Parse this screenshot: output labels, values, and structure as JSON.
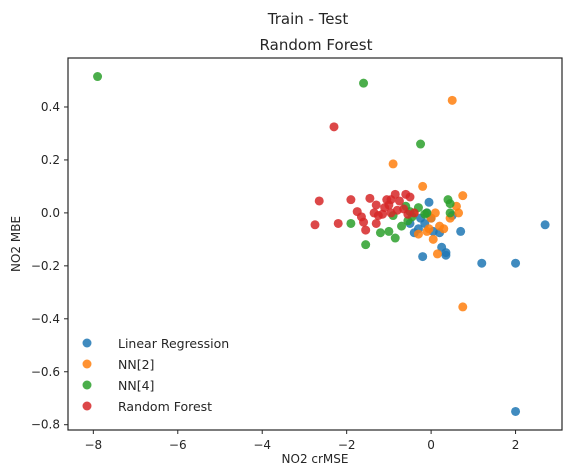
{
  "suptitle": "Train - Test",
  "chart_data": {
    "type": "scatter",
    "title": "Random Forest",
    "xlabel": "NO2 crMSE",
    "ylabel": "NO2 MBE",
    "xlim": [
      -8.6,
      3.1
    ],
    "ylim": [
      -0.82,
      0.585
    ],
    "xticks": [
      -8,
      -6,
      -4,
      -2,
      0,
      2
    ],
    "yticks": [
      -0.8,
      -0.6,
      -0.4,
      -0.2,
      0.0,
      0.2,
      0.4
    ],
    "xtick_labels": [
      "−8",
      "−6",
      "−4",
      "−2",
      "0",
      "2"
    ],
    "ytick_labels": [
      "−0.8",
      "−0.6",
      "−0.4",
      "−0.2",
      "0.0",
      "0.2",
      "0.4"
    ],
    "grid": false,
    "legend_position": "lower-left",
    "series": [
      {
        "name": "Linear Regression",
        "color": "#1f77b4",
        "points": [
          [
            2.7,
            -0.045
          ],
          [
            2.0,
            -0.19
          ],
          [
            2.0,
            -0.75
          ],
          [
            1.2,
            -0.19
          ],
          [
            0.35,
            -0.16
          ],
          [
            0.35,
            -0.15
          ],
          [
            0.25,
            -0.13
          ],
          [
            0.2,
            -0.075
          ],
          [
            0.05,
            -0.07
          ],
          [
            0.0,
            -0.02
          ],
          [
            -0.05,
            0.04
          ],
          [
            -0.1,
            0.0
          ],
          [
            -0.2,
            -0.165
          ],
          [
            -0.3,
            -0.06
          ],
          [
            -0.4,
            -0.075
          ],
          [
            -0.5,
            -0.04
          ],
          [
            0.5,
            -0.01
          ],
          [
            0.7,
            -0.07
          ],
          [
            -0.15,
            -0.04
          ],
          [
            -0.25,
            -0.02
          ]
        ]
      },
      {
        "name": "NN[2]",
        "color": "#ff7f0e",
        "points": [
          [
            0.5,
            0.425
          ],
          [
            -0.9,
            0.185
          ],
          [
            -0.2,
            0.1
          ],
          [
            0.75,
            0.065
          ],
          [
            0.6,
            0.025
          ],
          [
            0.1,
            0.0
          ],
          [
            0.0,
            -0.02
          ],
          [
            -0.05,
            -0.06
          ],
          [
            0.05,
            -0.1
          ],
          [
            0.15,
            -0.155
          ],
          [
            0.75,
            -0.355
          ],
          [
            -0.3,
            -0.08
          ],
          [
            0.2,
            -0.05
          ],
          [
            0.45,
            -0.02
          ],
          [
            0.65,
            0.0
          ],
          [
            -0.1,
            -0.07
          ],
          [
            -0.4,
            0.0
          ],
          [
            0.3,
            -0.06
          ]
        ]
      },
      {
        "name": "NN[4]",
        "color": "#2ca02c",
        "points": [
          [
            -7.9,
            0.515
          ],
          [
            -1.6,
            0.49
          ],
          [
            -0.25,
            0.26
          ],
          [
            0.4,
            0.05
          ],
          [
            0.45,
            0.035
          ],
          [
            -0.6,
            0.025
          ],
          [
            -0.5,
            0.005
          ],
          [
            -0.45,
            -0.015
          ],
          [
            -0.1,
            0.0
          ],
          [
            -0.15,
            -0.005
          ],
          [
            -1.9,
            -0.04
          ],
          [
            -1.55,
            -0.12
          ],
          [
            -1.0,
            -0.07
          ],
          [
            -0.85,
            -0.095
          ],
          [
            -0.7,
            -0.05
          ],
          [
            -1.2,
            -0.075
          ],
          [
            -0.3,
            0.02
          ],
          [
            0.45,
            0.0
          ],
          [
            -0.55,
            -0.03
          ],
          [
            -0.9,
            -0.01
          ]
        ]
      },
      {
        "name": "Random Forest",
        "color": "#d62728",
        "points": [
          [
            -2.3,
            0.325
          ],
          [
            -0.85,
            0.07
          ],
          [
            -0.6,
            0.07
          ],
          [
            -1.05,
            0.05
          ],
          [
            -0.95,
            0.05
          ],
          [
            -0.75,
            0.045
          ],
          [
            -2.65,
            0.045
          ],
          [
            -1.9,
            0.05
          ],
          [
            -1.45,
            0.055
          ],
          [
            -1.3,
            0.03
          ],
          [
            -1.1,
            0.02
          ],
          [
            -1.0,
            0.03
          ],
          [
            -0.5,
            0.06
          ],
          [
            -1.65,
            -0.015
          ],
          [
            -1.35,
            0.0
          ],
          [
            -1.25,
            -0.01
          ],
          [
            -1.15,
            -0.005
          ],
          [
            -1.6,
            -0.035
          ],
          [
            -1.55,
            -0.065
          ],
          [
            -2.2,
            -0.04
          ],
          [
            -2.75,
            -0.045
          ],
          [
            -0.8,
            0.01
          ],
          [
            -0.95,
            0.0
          ],
          [
            -0.55,
            -0.005
          ],
          [
            -0.4,
            0.0
          ],
          [
            -1.3,
            -0.04
          ],
          [
            -0.65,
            0.015
          ],
          [
            -1.75,
            0.005
          ]
        ]
      }
    ]
  }
}
